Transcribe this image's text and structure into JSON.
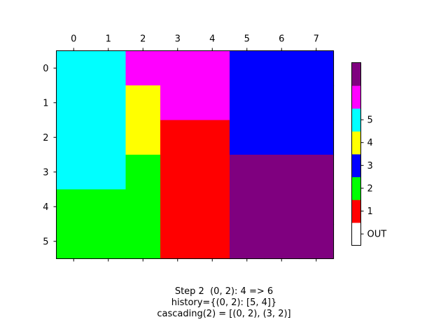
{
  "chart_data": {
    "type": "heatmap",
    "x_ticks": [
      "0",
      "1",
      "2",
      "3",
      "4",
      "5",
      "6",
      "7"
    ],
    "y_ticks": [
      "0",
      "1",
      "2",
      "3",
      "4",
      "5"
    ],
    "x_axis_position": "top",
    "grid": false,
    "grid_values": [
      [
        5,
        5,
        6,
        6,
        6,
        3,
        3,
        3
      ],
      [
        5,
        5,
        4,
        6,
        6,
        3,
        3,
        3
      ],
      [
        5,
        5,
        4,
        1,
        1,
        3,
        3,
        3
      ],
      [
        5,
        5,
        2,
        1,
        1,
        7,
        7,
        7
      ],
      [
        2,
        2,
        2,
        1,
        1,
        7,
        7,
        7
      ],
      [
        2,
        2,
        2,
        1,
        1,
        7,
        7,
        7
      ]
    ],
    "colormap": [
      {
        "value": 0,
        "color": "#ffffff"
      },
      {
        "value": 1,
        "color": "#ff0000"
      },
      {
        "value": 2,
        "color": "#00ff00"
      },
      {
        "value": 3,
        "color": "#0000ff"
      },
      {
        "value": 4,
        "color": "#ffff00"
      },
      {
        "value": 5,
        "color": "#00ffff"
      },
      {
        "value": 6,
        "color": "#ff00ff"
      },
      {
        "value": 7,
        "color": "#7f007f"
      }
    ],
    "colorbar": {
      "placement": "right",
      "tick_labels": [
        {
          "value": 0,
          "label": "OUT"
        },
        {
          "value": 1,
          "label": "1"
        },
        {
          "value": 2,
          "label": "2"
        },
        {
          "value": 3,
          "label": "3"
        },
        {
          "value": 4,
          "label": "4"
        },
        {
          "value": 5,
          "label": "5"
        }
      ]
    }
  },
  "caption": {
    "line1": "Step 2  (0, 2): 4 => 6",
    "line2": "history={(0, 2): [5, 4]}",
    "line3": "cascading(2) = [(0, 2), (3, 2)]"
  }
}
